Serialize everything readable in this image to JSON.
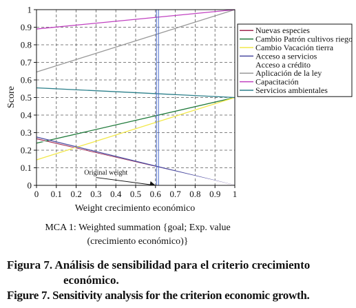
{
  "chart_data": {
    "type": "line",
    "title": "",
    "xlabel": "Weight crecimiento económico",
    "ylabel": "Score",
    "xlim": [
      0,
      1
    ],
    "ylim": [
      0,
      1
    ],
    "x_ticks": [
      "0",
      "0.1",
      "0.2",
      "0.3",
      "0.4",
      "0.5",
      "0.6",
      "0.7",
      "0.8",
      "0.9",
      "1"
    ],
    "y_ticks": [
      "0",
      "0.1",
      "0.2",
      "0.3",
      "0.4",
      "0.5",
      "0.6",
      "0.7",
      "0.8",
      "0.9",
      "1"
    ],
    "grid": true,
    "legend_position": "top-right",
    "original_weight": 0.61,
    "annotation": "Original weight",
    "series": [
      {
        "name": "Nuevas especies",
        "color": "#a0284f",
        "x": [
          0,
          1
        ],
        "y": [
          0.265,
          0.0
        ]
      },
      {
        "name": "Cambio Patrón cultivos riego",
        "color": "#1f7a3a",
        "x": [
          0,
          1
        ],
        "y": [
          0.24,
          0.5
        ]
      },
      {
        "name": "Cambio Vacación tierra",
        "color": "#f2e84a",
        "x": [
          0,
          1
        ],
        "y": [
          0.145,
          0.5
        ]
      },
      {
        "name": "Acceso a servicios",
        "color": "#4a4aa0",
        "x": [
          0,
          1
        ],
        "y": [
          0.275,
          0.0
        ]
      },
      {
        "name": "Acceso a crédito",
        "color": "#ffffff",
        "x": [
          0,
          1
        ],
        "y": [
          0.26,
          0.0
        ]
      },
      {
        "name": "Aplicación de la ley",
        "color": "#999999",
        "x": [
          0,
          1
        ],
        "y": [
          0.645,
          1.0
        ]
      },
      {
        "name": "Capacitación",
        "color": "#c040c0",
        "x": [
          0,
          1
        ],
        "y": [
          0.89,
          1.0
        ]
      },
      {
        "name": "Servicios ambientales",
        "color": "#2a7f8a",
        "x": [
          0,
          1
        ],
        "y": [
          0.555,
          0.5
        ]
      }
    ]
  },
  "method_label": {
    "line1": "MCA 1: Weighted summation {goal; Exp. value",
    "line2": "(crecimiento económico)}"
  },
  "caption": {
    "es_line1": "Figura 7. Análisis de sensibilidad para el criterio crecimiento",
    "es_line2": "económico.",
    "en": "Figure 7. Sensitivity analysis for the criterion economic growth."
  },
  "colors": {
    "original_weight_line": "#4466cc",
    "grid": "#555555"
  }
}
